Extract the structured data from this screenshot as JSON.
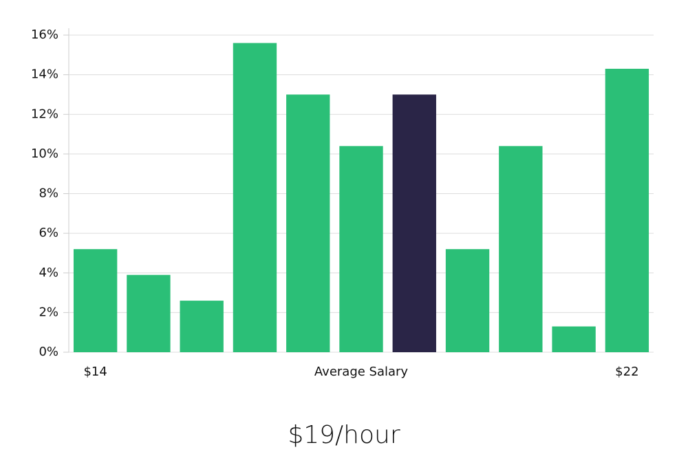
{
  "chart_data": {
    "type": "bar",
    "categories": [
      "$14",
      null,
      null,
      null,
      null,
      "Average Salary",
      null,
      null,
      null,
      null,
      "$22"
    ],
    "values": [
      5.2,
      3.9,
      2.6,
      15.6,
      13.0,
      10.4,
      13.0,
      5.2,
      10.4,
      1.3,
      14.3
    ],
    "colors": [
      "#2bbf77",
      "#2bbf77",
      "#2bbf77",
      "#2bbf77",
      "#2bbf77",
      "#2bbf77",
      "#2a2547",
      "#2bbf77",
      "#2bbf77",
      "#2bbf77",
      "#2bbf77"
    ],
    "ylim": [
      0,
      16
    ],
    "yticks": [
      {
        "value": 0,
        "label": "0%"
      },
      {
        "value": 2,
        "label": "2%"
      },
      {
        "value": 4,
        "label": "4%"
      },
      {
        "value": 6,
        "label": "6%"
      },
      {
        "value": 8,
        "label": "8%"
      },
      {
        "value": 10,
        "label": "10%"
      },
      {
        "value": 12,
        "label": "12%"
      },
      {
        "value": 14,
        "label": "14%"
      },
      {
        "value": 16,
        "label": "16%"
      }
    ],
    "grid": true,
    "annotation": "$19/hour"
  }
}
